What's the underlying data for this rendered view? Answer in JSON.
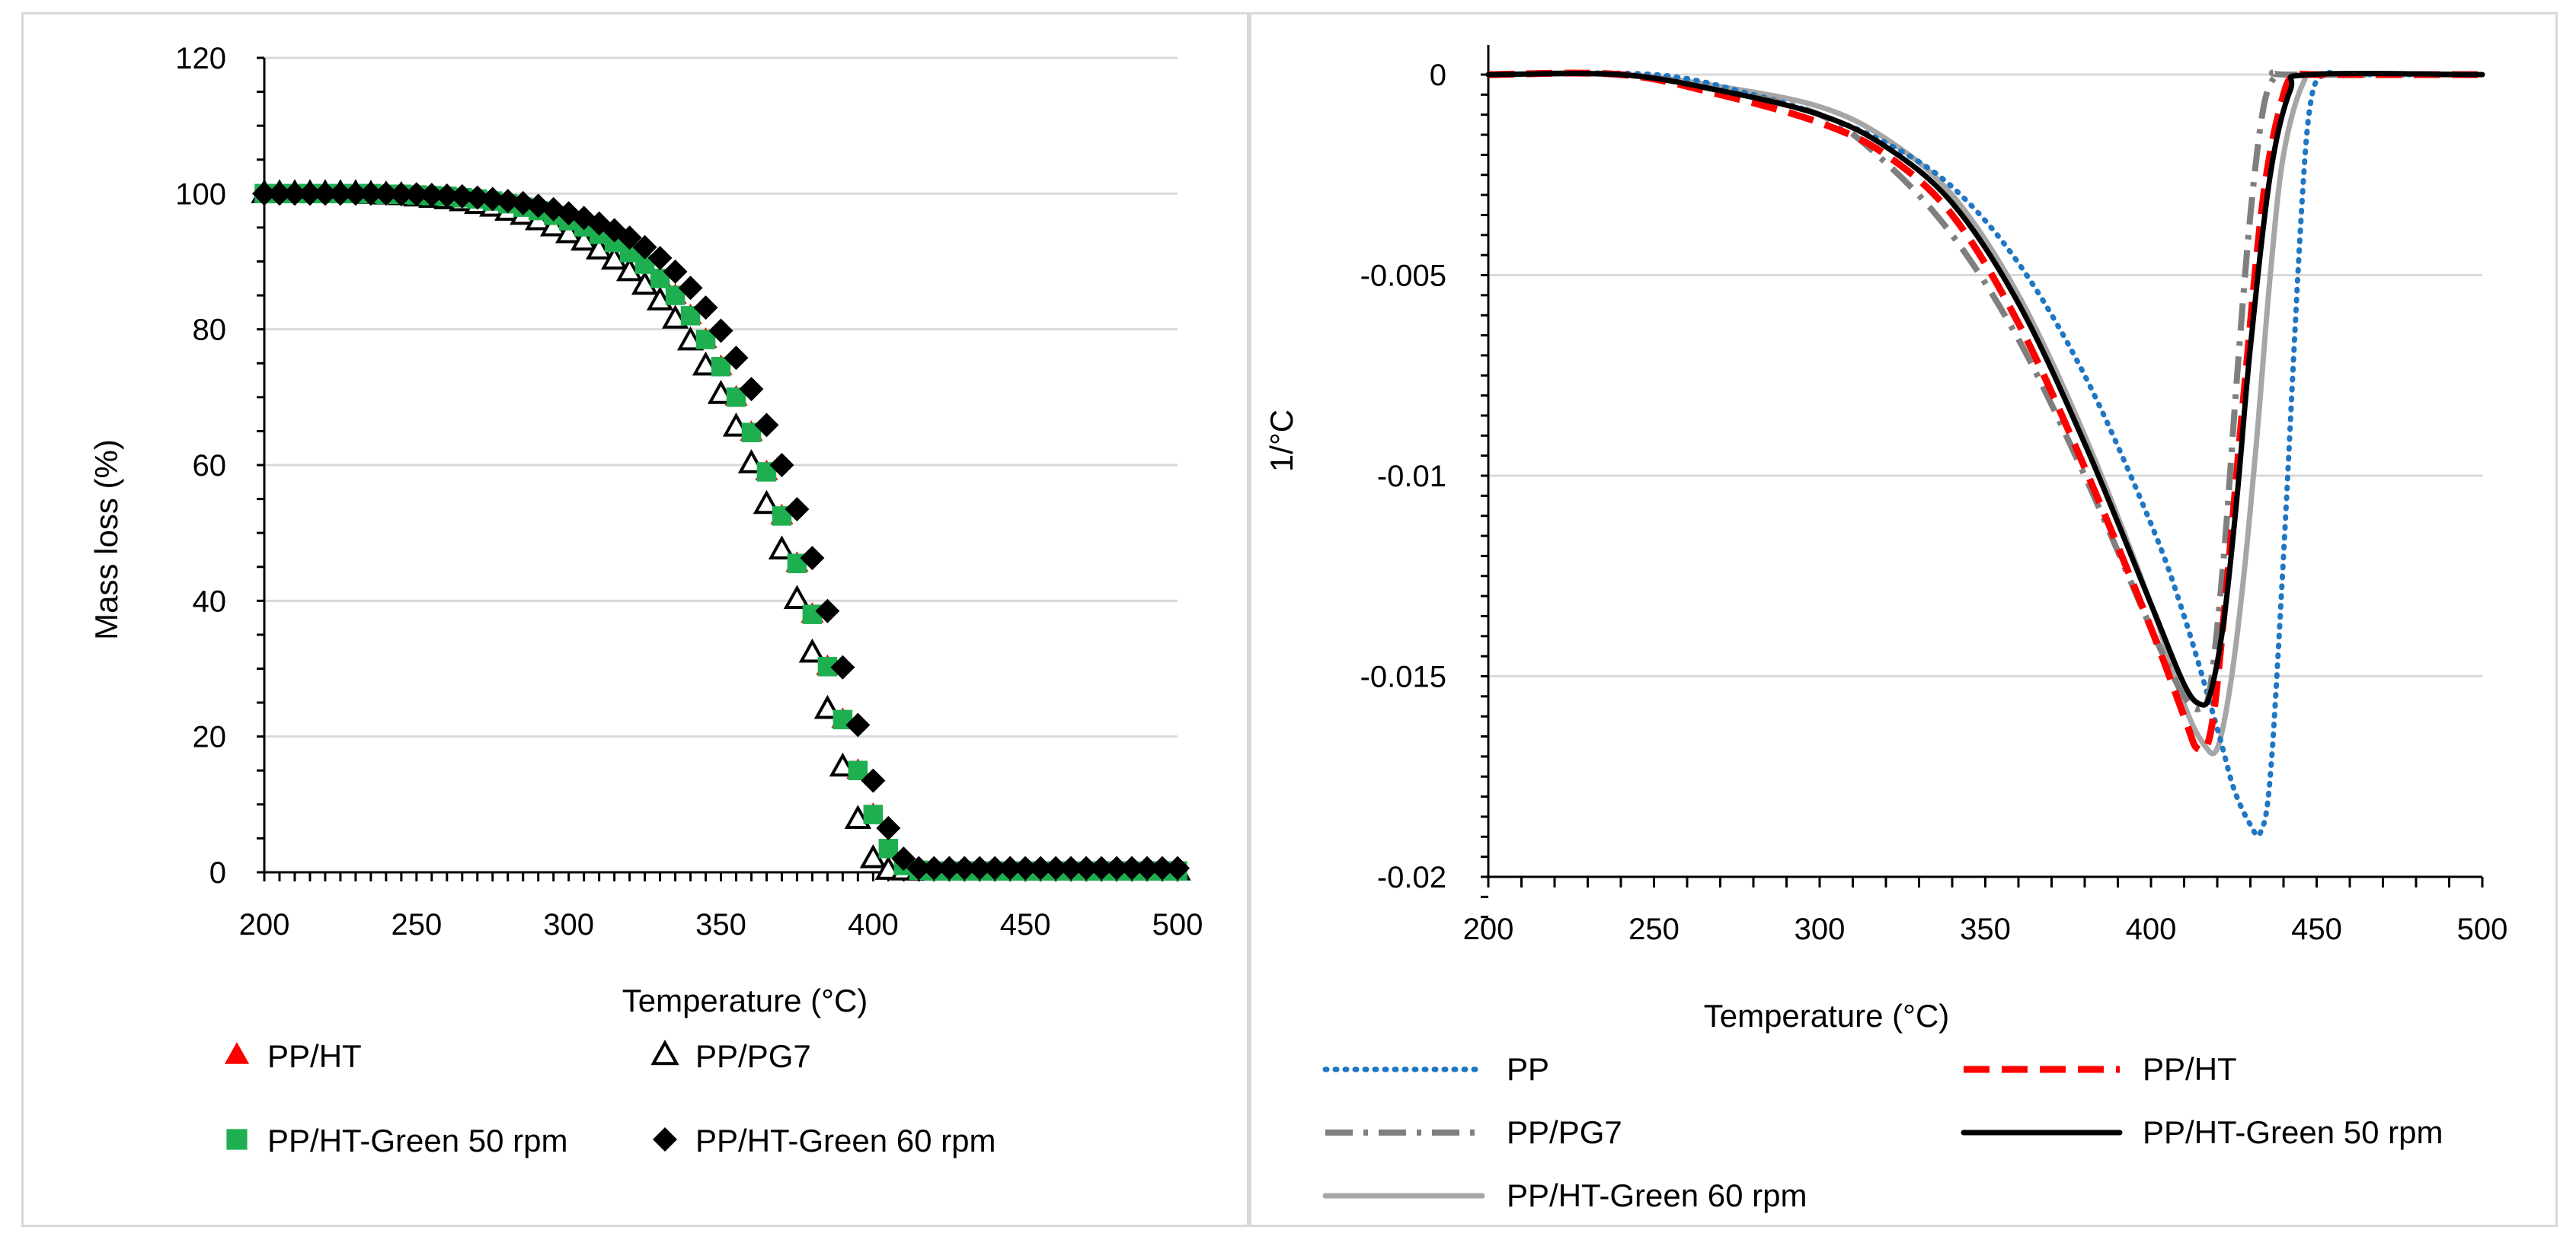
{
  "chart_data": [
    {
      "type": "scatter",
      "xlabel": "Temperature (°C)",
      "ylabel": "Mass loss (%)",
      "xlim": [
        200,
        500
      ],
      "ylim": [
        0,
        120
      ],
      "xticks": [
        200,
        250,
        300,
        350,
        400,
        450,
        500
      ],
      "yticks": [
        0,
        20,
        40,
        60,
        80,
        100,
        120
      ],
      "xtick_labels": [
        "200",
        "250",
        "300",
        "350",
        "400",
        "450",
        "500"
      ],
      "ytick_labels": [
        "0",
        "20",
        "40",
        "60",
        "80",
        "100",
        "120"
      ],
      "grid": "horizontal",
      "legend_position": "bottom",
      "series": [
        {
          "name": "PP/HT",
          "marker": "triangle-filled",
          "color": "#ff0000",
          "x": [
            200,
            205,
            210,
            215,
            220,
            225,
            230,
            235,
            240,
            245,
            250,
            255,
            260,
            265,
            270,
            275,
            280,
            285,
            290,
            295,
            300,
            305,
            310,
            315,
            320,
            325,
            330,
            335,
            340,
            345,
            350,
            355,
            360,
            365,
            370,
            375,
            380,
            385,
            390,
            395,
            400,
            405,
            410,
            415,
            420,
            425,
            430,
            435,
            440,
            445,
            450,
            455,
            460,
            465,
            470,
            475,
            480,
            485,
            490,
            495,
            500
          ],
          "y": [
            100,
            100,
            100,
            100,
            100,
            100,
            100,
            100,
            99.9,
            99.9,
            99.8,
            99.7,
            99.6,
            99.4,
            99.2,
            98.9,
            98.5,
            98.0,
            97.5,
            96.8,
            96.0,
            95.1,
            94.0,
            92.8,
            91.3,
            89.6,
            87.5,
            85.0,
            82.0,
            78.5,
            74.5,
            70.0,
            64.8,
            59.0,
            52.5,
            45.5,
            38.0,
            30.3,
            22.5,
            15.0,
            8.5,
            3.5,
            1.0,
            0.3,
            0.2,
            0.2,
            0.2,
            0.2,
            0.2,
            0.2,
            0.2,
            0.2,
            0.2,
            0.2,
            0.2,
            0.2,
            0.2,
            0.2,
            0.2,
            0.2,
            0.2
          ]
        },
        {
          "name": "PP/PG7",
          "marker": "triangle-open",
          "color": "#000000",
          "x": [
            200,
            205,
            210,
            215,
            220,
            225,
            230,
            235,
            240,
            245,
            250,
            255,
            260,
            265,
            270,
            275,
            280,
            285,
            290,
            295,
            300,
            305,
            310,
            315,
            320,
            325,
            330,
            335,
            340,
            345,
            350,
            355,
            360,
            365,
            370,
            375,
            380,
            385,
            390,
            395,
            400,
            405,
            410,
            415,
            420,
            425,
            430,
            435,
            440,
            445,
            450,
            455,
            460,
            465,
            470,
            475,
            480,
            485,
            490,
            495,
            500
          ],
          "y": [
            100,
            100,
            100,
            100,
            100,
            100,
            100,
            99.9,
            99.8,
            99.7,
            99.5,
            99.3,
            99.1,
            98.8,
            98.4,
            98.0,
            97.4,
            96.8,
            96.0,
            95.1,
            94.1,
            93.0,
            91.7,
            90.2,
            88.5,
            86.5,
            84.2,
            81.5,
            78.3,
            74.6,
            70.4,
            65.6,
            60.2,
            54.2,
            47.5,
            40.2,
            32.3,
            24.0,
            15.5,
            7.8,
            2.0,
            0.3,
            0.2,
            0.2,
            0.2,
            0.2,
            0.2,
            0.2,
            0.2,
            0.2,
            0.2,
            0.2,
            0.2,
            0.2,
            0.2,
            0.2,
            0.2,
            0.2,
            0.2,
            0.2,
            0.2
          ]
        },
        {
          "name": "PP/HT-Green 50 rpm",
          "marker": "square-filled",
          "color": "#1eb050",
          "x": [
            200,
            205,
            210,
            215,
            220,
            225,
            230,
            235,
            240,
            245,
            250,
            255,
            260,
            265,
            270,
            275,
            280,
            285,
            290,
            295,
            300,
            305,
            310,
            315,
            320,
            325,
            330,
            335,
            340,
            345,
            350,
            355,
            360,
            365,
            370,
            375,
            380,
            385,
            390,
            395,
            400,
            405,
            410,
            415,
            420,
            425,
            430,
            435,
            440,
            445,
            450,
            455,
            460,
            465,
            470,
            475,
            480,
            485,
            490,
            495,
            500
          ],
          "y": [
            100,
            100,
            100,
            100,
            100,
            100,
            100,
            100,
            99.9,
            99.9,
            99.8,
            99.7,
            99.6,
            99.4,
            99.2,
            98.9,
            98.5,
            98.0,
            97.5,
            96.8,
            96.0,
            95.1,
            94.0,
            92.8,
            91.3,
            89.6,
            87.5,
            85.0,
            82.0,
            78.5,
            74.5,
            70.0,
            64.8,
            59.0,
            52.5,
            45.5,
            38.0,
            30.3,
            22.5,
            15.0,
            8.5,
            3.5,
            1.0,
            0.3,
            0.2,
            0.2,
            0.2,
            0.2,
            0.2,
            0.2,
            0.2,
            0.2,
            0.2,
            0.2,
            0.2,
            0.2,
            0.2,
            0.2,
            0.2,
            0.2,
            0.2
          ]
        },
        {
          "name": "PP/HT-Green 60 rpm",
          "marker": "diamond-filled",
          "color": "#000000",
          "x": [
            200,
            205,
            210,
            215,
            220,
            225,
            230,
            235,
            240,
            245,
            250,
            255,
            260,
            265,
            270,
            275,
            280,
            285,
            290,
            295,
            300,
            305,
            310,
            315,
            320,
            325,
            330,
            335,
            340,
            345,
            350,
            355,
            360,
            365,
            370,
            375,
            380,
            385,
            390,
            395,
            400,
            405,
            410,
            415,
            420,
            425,
            430,
            435,
            440,
            445,
            450,
            455,
            460,
            465,
            470,
            475,
            480,
            485,
            490,
            495,
            500
          ],
          "y": [
            100,
            100,
            100,
            100,
            100,
            100,
            100,
            100,
            100,
            99.9,
            99.9,
            99.8,
            99.7,
            99.6,
            99.4,
            99.2,
            98.9,
            98.6,
            98.2,
            97.7,
            97.1,
            96.4,
            95.6,
            94.6,
            93.5,
            92.1,
            90.5,
            88.5,
            86.1,
            83.2,
            79.8,
            75.8,
            71.2,
            65.9,
            60.0,
            53.5,
            46.3,
            38.5,
            30.2,
            21.7,
            13.5,
            6.5,
            2.0,
            0.6,
            0.6,
            0.6,
            0.6,
            0.6,
            0.6,
            0.6,
            0.6,
            0.6,
            0.6,
            0.6,
            0.6,
            0.6,
            0.6,
            0.6,
            0.6,
            0.6,
            0.6
          ]
        }
      ]
    },
    {
      "type": "line",
      "xlabel": "Temperature (°C)",
      "ylabel": "1/°C",
      "xlim": [
        200,
        500
      ],
      "ylim": [
        -0.02,
        0
      ],
      "xticks": [
        200,
        250,
        300,
        350,
        400,
        450,
        500
      ],
      "yticks": [
        0,
        -0.005,
        -0.01,
        -0.015,
        -0.02
      ],
      "xtick_labels": [
        "200",
        "250",
        "300",
        "350",
        "400",
        "450",
        "500"
      ],
      "ytick_labels": [
        "0",
        "-0.005",
        "-0.01",
        "-0.015",
        "-0.02"
      ],
      "grid": "horizontal",
      "legend_position": "bottom",
      "series": [
        {
          "name": "PP",
          "style": "dotted",
          "color": "#1f77c4",
          "x": [
            200,
            250,
            280,
            300,
            320,
            340,
            360,
            380,
            400,
            410,
            420,
            425,
            430,
            433,
            436,
            440,
            445,
            448,
            452,
            460,
            500
          ],
          "y": [
            0,
            0,
            -0.0005,
            -0.001,
            -0.0017,
            -0.0028,
            -0.0047,
            -0.0075,
            -0.0112,
            -0.0135,
            -0.0163,
            -0.0178,
            -0.0187,
            -0.0189,
            -0.0175,
            -0.012,
            -0.004,
            -0.0008,
            0,
            0,
            0
          ]
        },
        {
          "name": "PP/HT",
          "style": "dashed",
          "color": "#ff0000",
          "x": [
            200,
            240,
            270,
            300,
            320,
            340,
            360,
            380,
            400,
            410,
            414,
            418,
            422,
            428,
            434,
            440,
            444,
            450,
            500
          ],
          "y": [
            0,
            0,
            -0.0005,
            -0.0012,
            -0.002,
            -0.0035,
            -0.0062,
            -0.0098,
            -0.0138,
            -0.016,
            -0.0168,
            -0.0164,
            -0.0135,
            -0.008,
            -0.003,
            -0.0005,
            0,
            0,
            0
          ]
        },
        {
          "name": "PP/PG7",
          "style": "dash-dot",
          "color": "#7f7f7f",
          "x": [
            200,
            240,
            270,
            300,
            320,
            340,
            360,
            380,
            400,
            410,
            415,
            418,
            422,
            426,
            430,
            434,
            438,
            442,
            500
          ],
          "y": [
            0,
            0,
            -0.0004,
            -0.001,
            -0.0022,
            -0.004,
            -0.0066,
            -0.01,
            -0.0138,
            -0.0155,
            -0.0158,
            -0.0152,
            -0.012,
            -0.0075,
            -0.0035,
            -0.0008,
            0,
            0,
            0
          ]
        },
        {
          "name": "PP/HT-Green 50 rpm",
          "style": "solid",
          "color": "#000000",
          "x": [
            200,
            240,
            270,
            300,
            320,
            340,
            360,
            380,
            400,
            410,
            415,
            418,
            422,
            426,
            430,
            436,
            442,
            448,
            500
          ],
          "y": [
            0,
            0,
            -0.0004,
            -0.001,
            -0.0018,
            -0.0032,
            -0.0057,
            -0.0092,
            -0.0132,
            -0.0152,
            -0.0157,
            -0.0154,
            -0.0136,
            -0.0105,
            -0.0068,
            -0.0025,
            -0.0004,
            0,
            0
          ]
        },
        {
          "name": "PP/HT-Green 60 rpm",
          "style": "solid",
          "color": "#a6a6a6",
          "x": [
            200,
            240,
            270,
            300,
            320,
            340,
            360,
            380,
            400,
            410,
            416,
            420,
            424,
            428,
            432,
            436,
            440,
            446,
            452,
            500
          ],
          "y": [
            0,
            0,
            -0.0003,
            -0.0008,
            -0.0016,
            -0.003,
            -0.0055,
            -0.009,
            -0.0132,
            -0.0157,
            -0.0167,
            -0.0168,
            -0.0152,
            -0.0125,
            -0.009,
            -0.005,
            -0.002,
            -0.0002,
            0,
            0
          ]
        }
      ]
    }
  ]
}
